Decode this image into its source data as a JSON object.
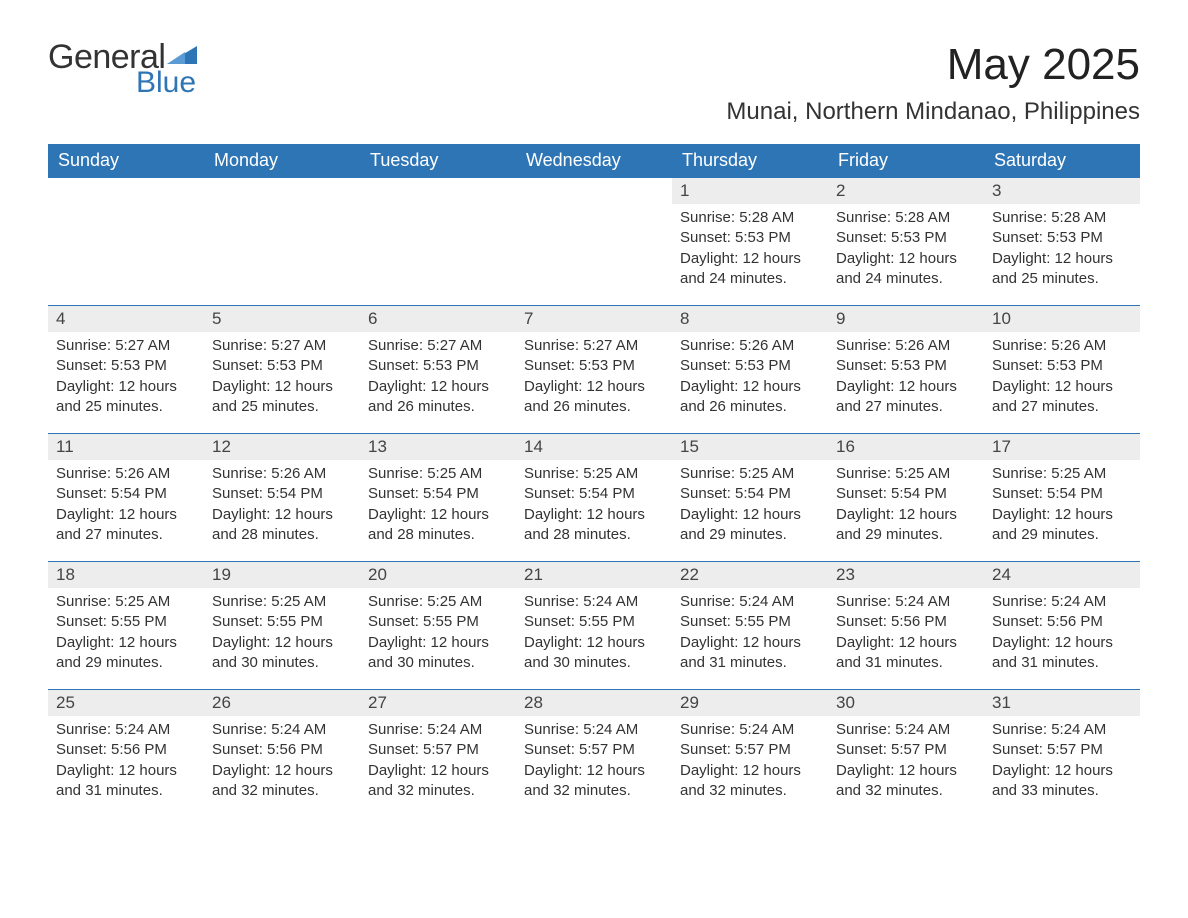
{
  "logo": {
    "word_general": "General",
    "word_blue": "Blue",
    "triangle_color": "#2e75b6"
  },
  "title": "May 2025",
  "location": "Munai, Northern Mindanao, Philippines",
  "colors": {
    "header_bg": "#2e75b6",
    "header_fg": "#ffffff",
    "daynum_bg": "#ededed",
    "text": "#333333",
    "row_border": "#2e75b6",
    "page_bg": "#ffffff"
  },
  "fonts": {
    "title_size_pt": 33,
    "location_size_pt": 18,
    "dayheader_size_pt": 14,
    "body_size_pt": 11
  },
  "day_headers": [
    "Sunday",
    "Monday",
    "Tuesday",
    "Wednesday",
    "Thursday",
    "Friday",
    "Saturday"
  ],
  "weeks": [
    [
      {
        "empty": true
      },
      {
        "empty": true
      },
      {
        "empty": true
      },
      {
        "empty": true
      },
      {
        "num": "1",
        "sunrise": "5:28 AM",
        "sunset": "5:53 PM",
        "daylight": "12 hours and 24 minutes."
      },
      {
        "num": "2",
        "sunrise": "5:28 AM",
        "sunset": "5:53 PM",
        "daylight": "12 hours and 24 minutes."
      },
      {
        "num": "3",
        "sunrise": "5:28 AM",
        "sunset": "5:53 PM",
        "daylight": "12 hours and 25 minutes."
      }
    ],
    [
      {
        "num": "4",
        "sunrise": "5:27 AM",
        "sunset": "5:53 PM",
        "daylight": "12 hours and 25 minutes."
      },
      {
        "num": "5",
        "sunrise": "5:27 AM",
        "sunset": "5:53 PM",
        "daylight": "12 hours and 25 minutes."
      },
      {
        "num": "6",
        "sunrise": "5:27 AM",
        "sunset": "5:53 PM",
        "daylight": "12 hours and 26 minutes."
      },
      {
        "num": "7",
        "sunrise": "5:27 AM",
        "sunset": "5:53 PM",
        "daylight": "12 hours and 26 minutes."
      },
      {
        "num": "8",
        "sunrise": "5:26 AM",
        "sunset": "5:53 PM",
        "daylight": "12 hours and 26 minutes."
      },
      {
        "num": "9",
        "sunrise": "5:26 AM",
        "sunset": "5:53 PM",
        "daylight": "12 hours and 27 minutes."
      },
      {
        "num": "10",
        "sunrise": "5:26 AM",
        "sunset": "5:53 PM",
        "daylight": "12 hours and 27 minutes."
      }
    ],
    [
      {
        "num": "11",
        "sunrise": "5:26 AM",
        "sunset": "5:54 PM",
        "daylight": "12 hours and 27 minutes."
      },
      {
        "num": "12",
        "sunrise": "5:26 AM",
        "sunset": "5:54 PM",
        "daylight": "12 hours and 28 minutes."
      },
      {
        "num": "13",
        "sunrise": "5:25 AM",
        "sunset": "5:54 PM",
        "daylight": "12 hours and 28 minutes."
      },
      {
        "num": "14",
        "sunrise": "5:25 AM",
        "sunset": "5:54 PM",
        "daylight": "12 hours and 28 minutes."
      },
      {
        "num": "15",
        "sunrise": "5:25 AM",
        "sunset": "5:54 PM",
        "daylight": "12 hours and 29 minutes."
      },
      {
        "num": "16",
        "sunrise": "5:25 AM",
        "sunset": "5:54 PM",
        "daylight": "12 hours and 29 minutes."
      },
      {
        "num": "17",
        "sunrise": "5:25 AM",
        "sunset": "5:54 PM",
        "daylight": "12 hours and 29 minutes."
      }
    ],
    [
      {
        "num": "18",
        "sunrise": "5:25 AM",
        "sunset": "5:55 PM",
        "daylight": "12 hours and 29 minutes."
      },
      {
        "num": "19",
        "sunrise": "5:25 AM",
        "sunset": "5:55 PM",
        "daylight": "12 hours and 30 minutes."
      },
      {
        "num": "20",
        "sunrise": "5:25 AM",
        "sunset": "5:55 PM",
        "daylight": "12 hours and 30 minutes."
      },
      {
        "num": "21",
        "sunrise": "5:24 AM",
        "sunset": "5:55 PM",
        "daylight": "12 hours and 30 minutes."
      },
      {
        "num": "22",
        "sunrise": "5:24 AM",
        "sunset": "5:55 PM",
        "daylight": "12 hours and 31 minutes."
      },
      {
        "num": "23",
        "sunrise": "5:24 AM",
        "sunset": "5:56 PM",
        "daylight": "12 hours and 31 minutes."
      },
      {
        "num": "24",
        "sunrise": "5:24 AM",
        "sunset": "5:56 PM",
        "daylight": "12 hours and 31 minutes."
      }
    ],
    [
      {
        "num": "25",
        "sunrise": "5:24 AM",
        "sunset": "5:56 PM",
        "daylight": "12 hours and 31 minutes."
      },
      {
        "num": "26",
        "sunrise": "5:24 AM",
        "sunset": "5:56 PM",
        "daylight": "12 hours and 32 minutes."
      },
      {
        "num": "27",
        "sunrise": "5:24 AM",
        "sunset": "5:57 PM",
        "daylight": "12 hours and 32 minutes."
      },
      {
        "num": "28",
        "sunrise": "5:24 AM",
        "sunset": "5:57 PM",
        "daylight": "12 hours and 32 minutes."
      },
      {
        "num": "29",
        "sunrise": "5:24 AM",
        "sunset": "5:57 PM",
        "daylight": "12 hours and 32 minutes."
      },
      {
        "num": "30",
        "sunrise": "5:24 AM",
        "sunset": "5:57 PM",
        "daylight": "12 hours and 32 minutes."
      },
      {
        "num": "31",
        "sunrise": "5:24 AM",
        "sunset": "5:57 PM",
        "daylight": "12 hours and 33 minutes."
      }
    ]
  ],
  "labels": {
    "sunrise": "Sunrise: ",
    "sunset": "Sunset: ",
    "daylight": "Daylight: "
  }
}
